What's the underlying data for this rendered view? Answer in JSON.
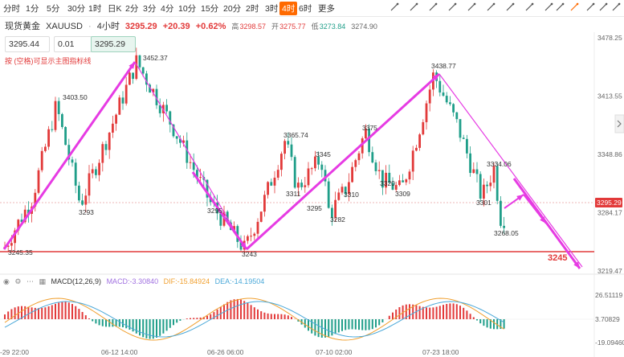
{
  "toolbar": {
    "timeframes": [
      "分时",
      "1分",
      "5分",
      "30分",
      "1时",
      "日K",
      "2分",
      "3分",
      "4分",
      "10分",
      "15分",
      "20分",
      "2时",
      "3时",
      "4时",
      "6时",
      "更多"
    ],
    "active": "4时"
  },
  "instrument": {
    "name": "现货黄金",
    "symbol": "XAUUSD",
    "interval": "4小时",
    "price": "3295.29",
    "change": "+20.39",
    "change_pct": "+0.62%",
    "high_label": "高",
    "high": "3298.57",
    "open_label": "开",
    "open": "3275.77",
    "low_label": "低",
    "low": "3273.84",
    "close": "3274.90"
  },
  "order": {
    "bid": "3295.44",
    "qty": "0.01",
    "ask": "3295.29"
  },
  "hint": "按 (空格)可显示主图指标线",
  "price_axis": {
    "ticks": [
      "3478.25",
      "3413.55",
      "3348.86",
      "3284.17",
      "3219.47"
    ],
    "current": "3295.29"
  },
  "annotations": {
    "p1": "3245.35",
    "p2": "3403.50",
    "p3": "3293",
    "p4": "3452.37",
    "p5": "3295",
    "p6": "3243",
    "p7": "3365.74",
    "p8": "3311",
    "p9": "3345",
    "p10": "3295",
    "p11": "3282",
    "p12": "3375",
    "p13": "3310",
    "p14": "3320",
    "p15": "3309",
    "p16": "3438.77",
    "p17": "3301",
    "p18": "3334.06",
    "p19": "3268.05",
    "support": "3245"
  },
  "macd": {
    "label": "MACD(12,26,9)",
    "macd": "MACD:-3.30840",
    "dif": "DIF:-15.84924",
    "dea": "DEA:-14.19504",
    "ticks": [
      "26.51119",
      "3.70829",
      "-19.09460"
    ]
  },
  "time_axis": [
    "-29 22:00",
    "06-12 14:00",
    "06-26 06:00",
    "07-10 02:00",
    "07-23 18:00"
  ],
  "colors": {
    "up": "#e23a3a",
    "down": "#1f9e89",
    "wave": "#e63be3",
    "support": "#e23a3a",
    "dif": "#f0a030",
    "dea": "#4aa8d8"
  }
}
